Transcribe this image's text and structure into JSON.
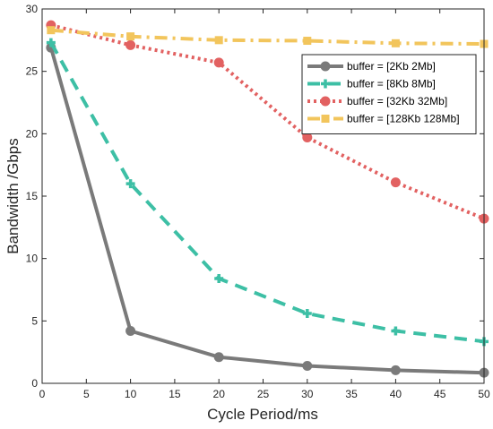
{
  "chart_data": {
    "type": "line",
    "xlabel": "Cycle Period/ms",
    "ylabel": "Bandwidth /Gbps",
    "xlim": [
      0,
      50
    ],
    "ylim": [
      0,
      30
    ],
    "xticks": [
      0,
      5,
      10,
      15,
      20,
      25,
      30,
      35,
      40,
      45,
      50
    ],
    "yticks": [
      0,
      5,
      10,
      15,
      20,
      25,
      30
    ],
    "grid": false,
    "legend_position": "top-right",
    "x": [
      1,
      10,
      20,
      30,
      40,
      50
    ],
    "series": [
      {
        "name": "buffer = [2Kb 2Mb]",
        "values": [
          26.9,
          4.2,
          2.1,
          1.4,
          1.05,
          0.85
        ],
        "color": "#7a7a7a",
        "line_style": "solid",
        "marker": "circle"
      },
      {
        "name": "buffer = [8Kb 8Mb]",
        "values": [
          27.3,
          16.0,
          8.4,
          5.6,
          4.2,
          3.35
        ],
        "color": "#3dbfa5",
        "line_style": "dashed",
        "marker": "plus"
      },
      {
        "name": "buffer = [32Kb 32Mb]",
        "values": [
          28.7,
          27.1,
          25.7,
          19.7,
          16.1,
          13.2
        ],
        "color": "#e26161",
        "line_style": "dotted",
        "marker": "circle"
      },
      {
        "name": "buffer = [128Kb 128Mb]",
        "values": [
          28.3,
          27.8,
          27.5,
          27.45,
          27.25,
          27.2
        ],
        "color": "#f2c55c",
        "line_style": "dashdot",
        "marker": "square"
      }
    ]
  }
}
